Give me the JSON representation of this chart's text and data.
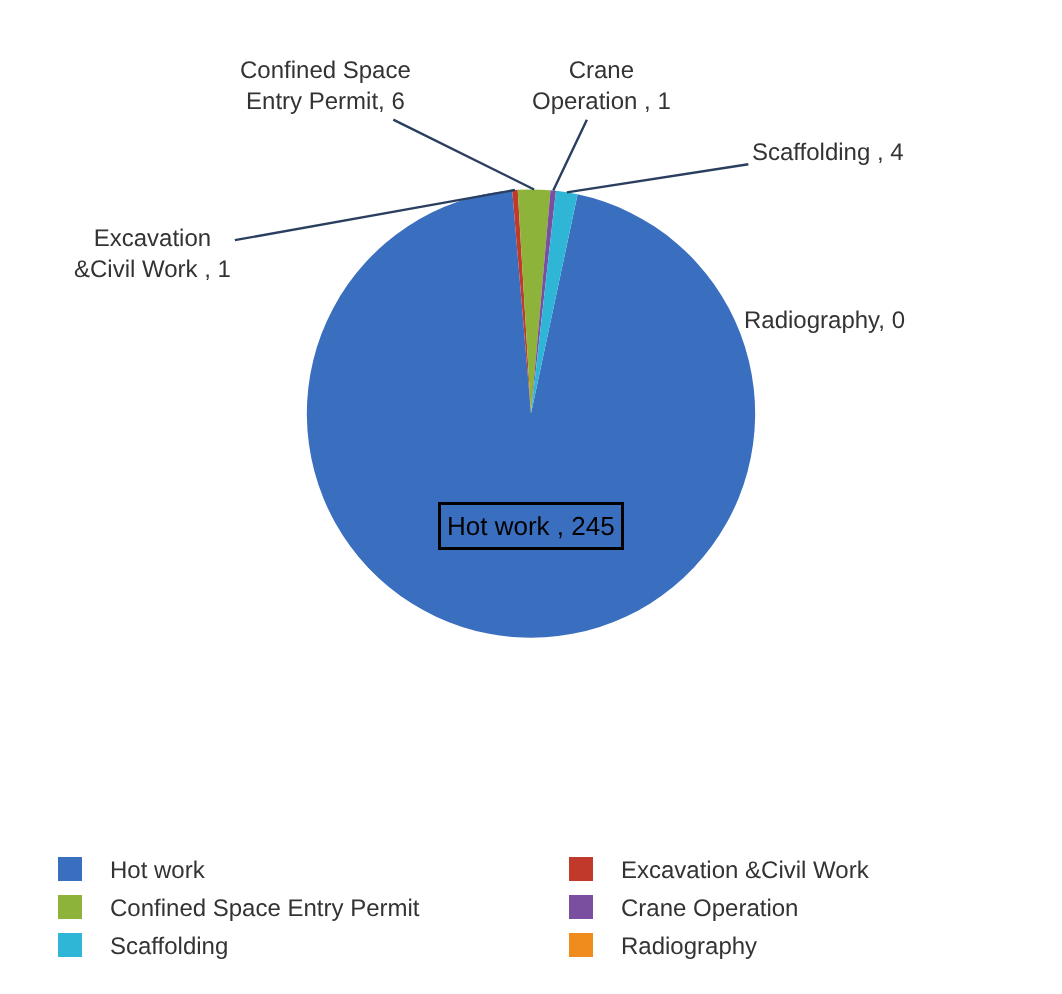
{
  "chart_data": {
    "type": "pie",
    "categories": [
      "Hot work",
      "Excavation &Civil Work",
      "Confined Space Entry Permit",
      "Crane Operation",
      "Scaffolding",
      "Radiography"
    ],
    "values": [
      245,
      1,
      6,
      1,
      4,
      0
    ],
    "colors": [
      "#3a6fbf",
      "#c0392b",
      "#8db33a",
      "#7a4fa0",
      "#2fb5d6",
      "#f08c1d"
    ],
    "value_labels": [
      "Hot work , 245",
      "Excavation &Civil Work , 1",
      "Confined Space Entry Permit, 6",
      "Crane Operation , 1",
      "Scaffolding , 4",
      "Radiography, 0"
    ],
    "legend": "bottom"
  }
}
